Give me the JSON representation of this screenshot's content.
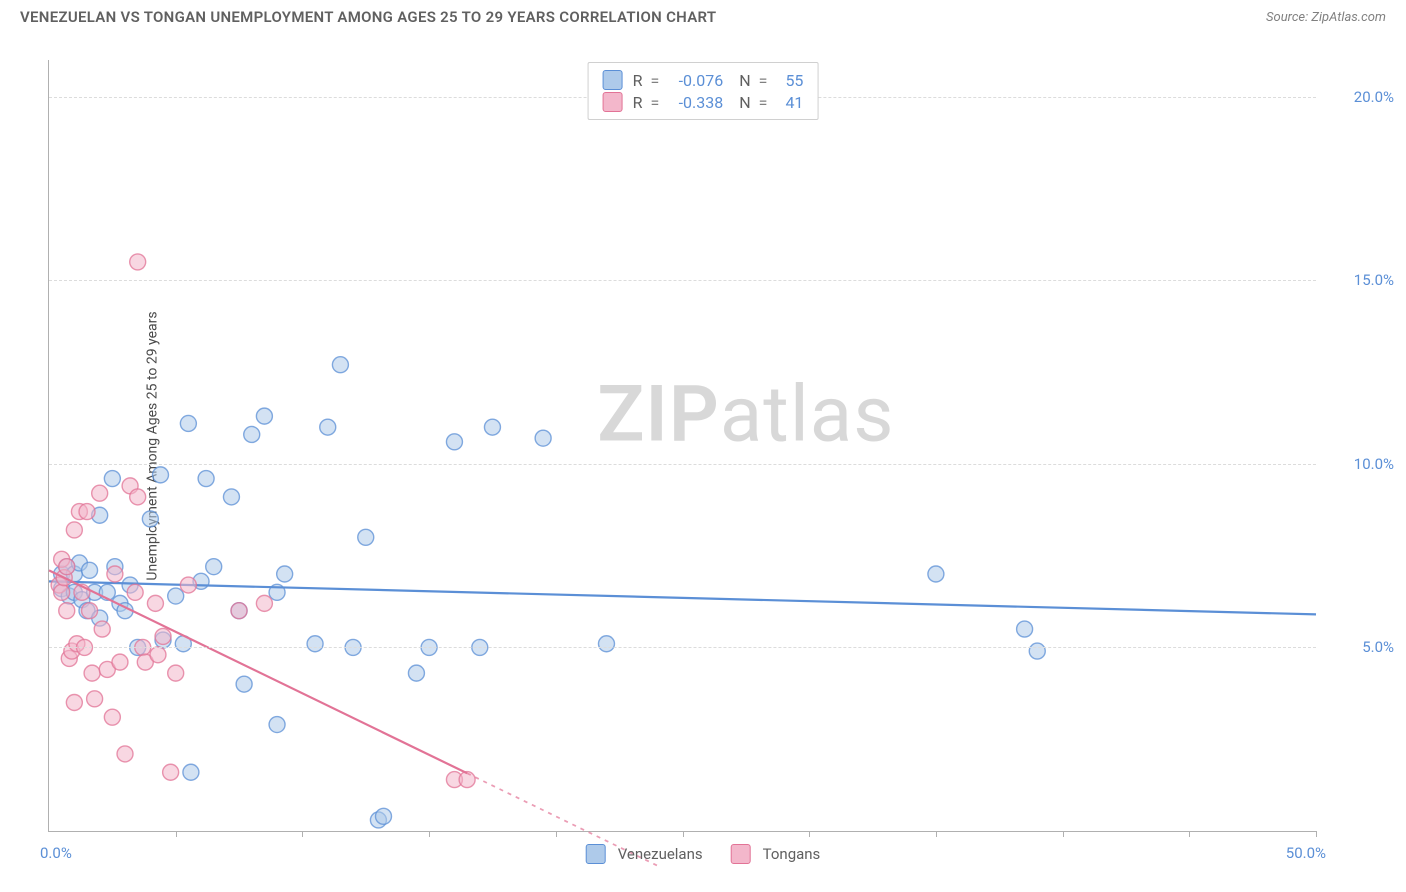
{
  "title": "VENEZUELAN VS TONGAN UNEMPLOYMENT AMONG AGES 25 TO 29 YEARS CORRELATION CHART",
  "source_label": "Source: ZipAtlas.com",
  "chart": {
    "type": "scatter",
    "y_axis_label": "Unemployment Among Ages 25 to 29 years",
    "xlim": [
      0,
      50
    ],
    "ylim": [
      0,
      21
    ],
    "x_tick_labels": {
      "left": "0.0%",
      "right": "50.0%"
    },
    "x_tick_positions": [
      5,
      10,
      15,
      20,
      25,
      30,
      35,
      40,
      45,
      50
    ],
    "y_grid": [
      {
        "v": 5,
        "label": "5.0%"
      },
      {
        "v": 10,
        "label": "10.0%"
      },
      {
        "v": 15,
        "label": "15.0%"
      },
      {
        "v": 20,
        "label": "20.0%"
      }
    ],
    "background_color": "#ffffff",
    "grid_color": "#dcdcdc",
    "axis_color": "#b0b0b0",
    "marker_radius": 8,
    "marker_opacity": 0.55,
    "line_width": 2.2,
    "series": [
      {
        "name": "Venezuelans",
        "color": "#5b8fd6",
        "fill": "#aecaea",
        "R": "-0.076",
        "N": "55",
        "trend": {
          "x1": 0,
          "y1": 6.8,
          "x2": 50,
          "y2": 5.9,
          "dashed_from": 50
        },
        "points": [
          {
            "x": 0.5,
            "y": 6.6
          },
          {
            "x": 0.5,
            "y": 7.0
          },
          {
            "x": 0.7,
            "y": 7.2
          },
          {
            "x": 0.8,
            "y": 6.4
          },
          {
            "x": 1.0,
            "y": 7.0
          },
          {
            "x": 1.0,
            "y": 6.5
          },
          {
            "x": 1.2,
            "y": 7.3
          },
          {
            "x": 1.3,
            "y": 6.3
          },
          {
            "x": 1.5,
            "y": 6.0
          },
          {
            "x": 1.6,
            "y": 7.1
          },
          {
            "x": 1.8,
            "y": 6.5
          },
          {
            "x": 2.0,
            "y": 5.8
          },
          {
            "x": 2.0,
            "y": 8.6
          },
          {
            "x": 2.3,
            "y": 6.5
          },
          {
            "x": 2.5,
            "y": 9.6
          },
          {
            "x": 2.6,
            "y": 7.2
          },
          {
            "x": 2.8,
            "y": 6.2
          },
          {
            "x": 3.0,
            "y": 6.0
          },
          {
            "x": 3.2,
            "y": 6.7
          },
          {
            "x": 3.5,
            "y": 5.0
          },
          {
            "x": 4.0,
            "y": 8.5
          },
          {
            "x": 4.4,
            "y": 9.7
          },
          {
            "x": 4.5,
            "y": 5.2
          },
          {
            "x": 5.0,
            "y": 6.4
          },
          {
            "x": 5.3,
            "y": 5.1
          },
          {
            "x": 5.5,
            "y": 11.1
          },
          {
            "x": 5.6,
            "y": 1.6
          },
          {
            "x": 6.0,
            "y": 6.8
          },
          {
            "x": 6.2,
            "y": 9.6
          },
          {
            "x": 6.5,
            "y": 7.2
          },
          {
            "x": 7.2,
            "y": 9.1
          },
          {
            "x": 7.5,
            "y": 6.0
          },
          {
            "x": 7.7,
            "y": 4.0
          },
          {
            "x": 8.0,
            "y": 10.8
          },
          {
            "x": 8.5,
            "y": 11.3
          },
          {
            "x": 9.0,
            "y": 2.9
          },
          {
            "x": 9.0,
            "y": 6.5
          },
          {
            "x": 9.3,
            "y": 7.0
          },
          {
            "x": 10.5,
            "y": 5.1
          },
          {
            "x": 11.0,
            "y": 11.0
          },
          {
            "x": 11.5,
            "y": 12.7
          },
          {
            "x": 12.0,
            "y": 5.0
          },
          {
            "x": 12.5,
            "y": 8.0
          },
          {
            "x": 13.0,
            "y": 0.3
          },
          {
            "x": 13.2,
            "y": 0.4
          },
          {
            "x": 14.5,
            "y": 4.3
          },
          {
            "x": 15.0,
            "y": 5.0
          },
          {
            "x": 16.0,
            "y": 10.6
          },
          {
            "x": 17.0,
            "y": 5.0
          },
          {
            "x": 17.5,
            "y": 11.0
          },
          {
            "x": 19.5,
            "y": 10.7
          },
          {
            "x": 22.0,
            "y": 5.1
          },
          {
            "x": 35.0,
            "y": 7.0
          },
          {
            "x": 38.5,
            "y": 5.5
          },
          {
            "x": 39.0,
            "y": 4.9
          }
        ]
      },
      {
        "name": "Tongans",
        "color": "#e27396",
        "fill": "#f3b7cb",
        "R": "-0.338",
        "N": "41",
        "trend": {
          "x1": 0,
          "y1": 7.1,
          "x2": 20,
          "y2": 0.4,
          "dashed_from": 16.5,
          "dash_x2": 24
        },
        "points": [
          {
            "x": 0.4,
            "y": 6.7
          },
          {
            "x": 0.5,
            "y": 6.5
          },
          {
            "x": 0.5,
            "y": 7.4
          },
          {
            "x": 0.6,
            "y": 6.9
          },
          {
            "x": 0.7,
            "y": 6.0
          },
          {
            "x": 0.7,
            "y": 7.2
          },
          {
            "x": 0.8,
            "y": 4.7
          },
          {
            "x": 0.9,
            "y": 4.9
          },
          {
            "x": 1.0,
            "y": 3.5
          },
          {
            "x": 1.0,
            "y": 8.2
          },
          {
            "x": 1.1,
            "y": 5.1
          },
          {
            "x": 1.2,
            "y": 8.7
          },
          {
            "x": 1.3,
            "y": 6.5
          },
          {
            "x": 1.4,
            "y": 5.0
          },
          {
            "x": 1.5,
            "y": 8.7
          },
          {
            "x": 1.6,
            "y": 6.0
          },
          {
            "x": 1.7,
            "y": 4.3
          },
          {
            "x": 1.8,
            "y": 3.6
          },
          {
            "x": 2.0,
            "y": 9.2
          },
          {
            "x": 2.1,
            "y": 5.5
          },
          {
            "x": 2.3,
            "y": 4.4
          },
          {
            "x": 2.5,
            "y": 3.1
          },
          {
            "x": 2.6,
            "y": 7.0
          },
          {
            "x": 2.8,
            "y": 4.6
          },
          {
            "x": 3.0,
            "y": 2.1
          },
          {
            "x": 3.2,
            "y": 9.4
          },
          {
            "x": 3.4,
            "y": 6.5
          },
          {
            "x": 3.5,
            "y": 9.1
          },
          {
            "x": 3.5,
            "y": 15.5
          },
          {
            "x": 3.7,
            "y": 5.0
          },
          {
            "x": 3.8,
            "y": 4.6
          },
          {
            "x": 4.2,
            "y": 6.2
          },
          {
            "x": 4.3,
            "y": 4.8
          },
          {
            "x": 4.5,
            "y": 5.3
          },
          {
            "x": 4.8,
            "y": 1.6
          },
          {
            "x": 5.0,
            "y": 4.3
          },
          {
            "x": 5.5,
            "y": 6.7
          },
          {
            "x": 7.5,
            "y": 6.0
          },
          {
            "x": 8.5,
            "y": 6.2
          },
          {
            "x": 16.0,
            "y": 1.4
          },
          {
            "x": 16.5,
            "y": 1.4
          }
        ]
      }
    ],
    "legend": [
      "Venezuelans",
      "Tongans"
    ],
    "watermark": {
      "zip": "ZIP",
      "atlas": "atlas",
      "color": "#d8d8d8"
    }
  }
}
